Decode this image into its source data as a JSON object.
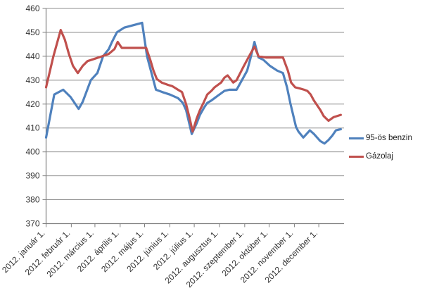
{
  "chart_data": {
    "type": "line",
    "title": "",
    "grid": true,
    "legend_position": "right",
    "x_axis": {
      "unit": "day_of_year_2012",
      "range": [
        0,
        366
      ],
      "tick_days": [
        0,
        31,
        60,
        91,
        121,
        152,
        182,
        213,
        244,
        274,
        305,
        335
      ],
      "tick_labels": [
        "2012. január 1.",
        "2012. február 1.",
        "2012. március 1.",
        "2012. április 1.",
        "2012. május 1.",
        "2012. június 1.",
        "2012. július 1.",
        "2012. augusztus 1.",
        "2012. szeptember 1.",
        "2012. október 1.",
        "2012. november 1.",
        "2012. december 1."
      ]
    },
    "y_axis": {
      "min": 370,
      "max": 460,
      "step": 10,
      "ticks": [
        370,
        380,
        390,
        400,
        410,
        420,
        430,
        440,
        450,
        460
      ]
    },
    "series": [
      {
        "name": "95-ös benzin",
        "color": "#4F81BD",
        "points": [
          [
            0,
            406
          ],
          [
            10,
            424
          ],
          [
            21,
            426
          ],
          [
            30,
            423
          ],
          [
            40,
            418
          ],
          [
            45,
            421
          ],
          [
            55,
            430
          ],
          [
            63,
            433
          ],
          [
            70,
            440
          ],
          [
            77,
            443
          ],
          [
            81,
            446
          ],
          [
            87,
            450
          ],
          [
            96,
            452
          ],
          [
            107,
            453
          ],
          [
            118,
            454
          ],
          [
            124,
            440
          ],
          [
            135,
            426
          ],
          [
            143,
            425
          ],
          [
            152,
            424
          ],
          [
            162,
            422.5
          ],
          [
            168,
            420.5
          ],
          [
            172,
            417.5
          ],
          [
            179,
            407.5
          ],
          [
            185,
            412
          ],
          [
            189,
            415.5
          ],
          [
            194,
            418.5
          ],
          [
            198,
            420.5
          ],
          [
            203,
            421.5
          ],
          [
            207,
            422.5
          ],
          [
            211,
            423.5
          ],
          [
            215,
            424.5
          ],
          [
            219,
            425.5
          ],
          [
            225,
            426
          ],
          [
            234,
            426
          ],
          [
            239,
            429
          ],
          [
            247,
            434
          ],
          [
            251,
            439
          ],
          [
            256,
            446
          ],
          [
            261,
            439.5
          ],
          [
            267,
            438.5
          ],
          [
            275,
            436
          ],
          [
            284,
            434
          ],
          [
            291,
            433
          ],
          [
            296,
            427
          ],
          [
            300,
            420.5
          ],
          [
            307,
            410.5
          ],
          [
            310,
            408.5
          ],
          [
            316,
            406
          ],
          [
            320,
            407.5
          ],
          [
            324,
            409
          ],
          [
            329,
            407.5
          ],
          [
            333,
            406
          ],
          [
            337,
            404.5
          ],
          [
            342,
            403.5
          ],
          [
            347,
            405
          ],
          [
            352,
            407
          ],
          [
            356,
            409
          ],
          [
            362,
            409.5
          ]
        ]
      },
      {
        "name": "Gázolaj",
        "color": "#C0504D",
        "points": [
          [
            0,
            427
          ],
          [
            9,
            440
          ],
          [
            18,
            451
          ],
          [
            23,
            447
          ],
          [
            28,
            441
          ],
          [
            33,
            436
          ],
          [
            39,
            433
          ],
          [
            45,
            436
          ],
          [
            51,
            438
          ],
          [
            60,
            439
          ],
          [
            69,
            440
          ],
          [
            77,
            441
          ],
          [
            84,
            443
          ],
          [
            88,
            446
          ],
          [
            93,
            443.5
          ],
          [
            103,
            443.5
          ],
          [
            113,
            443.5
          ],
          [
            123,
            443.5
          ],
          [
            128,
            438.5
          ],
          [
            132,
            434
          ],
          [
            136,
            430.5
          ],
          [
            142,
            429
          ],
          [
            150,
            428
          ],
          [
            155,
            427.5
          ],
          [
            162,
            426
          ],
          [
            167,
            425
          ],
          [
            172,
            420
          ],
          [
            176,
            414.5
          ],
          [
            180,
            408.5
          ],
          [
            185,
            414
          ],
          [
            189,
            417.5
          ],
          [
            194,
            421
          ],
          [
            198,
            424
          ],
          [
            203,
            425.5
          ],
          [
            207,
            427
          ],
          [
            211,
            428
          ],
          [
            215,
            429
          ],
          [
            219,
            431
          ],
          [
            223,
            432
          ],
          [
            230,
            429
          ],
          [
            234,
            430
          ],
          [
            243,
            436
          ],
          [
            251,
            441
          ],
          [
            256,
            444
          ],
          [
            261,
            440
          ],
          [
            270,
            439.5
          ],
          [
            280,
            439.5
          ],
          [
            291,
            439.5
          ],
          [
            297,
            434
          ],
          [
            301,
            429
          ],
          [
            306,
            427
          ],
          [
            312,
            426.5
          ],
          [
            317,
            426
          ],
          [
            321,
            425.5
          ],
          [
            325,
            424
          ],
          [
            329,
            421.5
          ],
          [
            333,
            419.5
          ],
          [
            337,
            417.5
          ],
          [
            341,
            415
          ],
          [
            347,
            413
          ],
          [
            353,
            414.5
          ],
          [
            362,
            415.5
          ]
        ]
      }
    ]
  },
  "colors": {
    "gridline": "#8E8E8E",
    "axis": "#7F7F7F",
    "tick_label": "#333333",
    "background": "#FFFFFF"
  }
}
